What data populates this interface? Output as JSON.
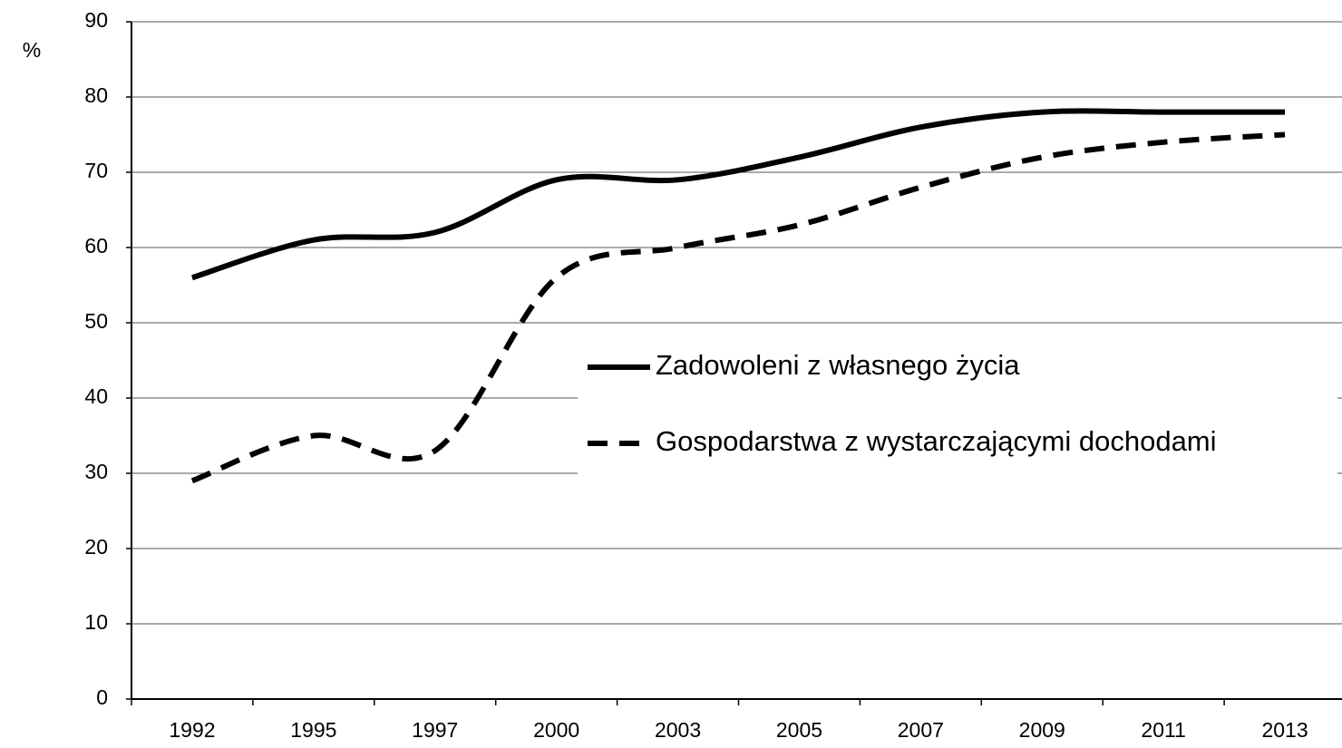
{
  "chart_data": {
    "type": "line",
    "y_label": "%",
    "categories": [
      "1992",
      "1995",
      "1997",
      "2000",
      "2003",
      "2005",
      "2007",
      "2009",
      "2011",
      "2013"
    ],
    "series": [
      {
        "name": "Zadowoleni z własnego życia",
        "color": "#000000",
        "style": "solid",
        "values": [
          56,
          61,
          62,
          69,
          69,
          72,
          76,
          78,
          78,
          78
        ]
      },
      {
        "name": "Gospodarstwa z wystarczającymi dochodami",
        "color": "#000000",
        "style": "dashed",
        "values": [
          29,
          35,
          33,
          56,
          60,
          63,
          68,
          72,
          74,
          75
        ]
      }
    ],
    "ylim": [
      0,
      90
    ],
    "yticks": [
      0,
      10,
      20,
      30,
      40,
      50,
      60,
      70,
      80,
      90
    ],
    "grid": true,
    "legend": "right",
    "smooth": true
  }
}
